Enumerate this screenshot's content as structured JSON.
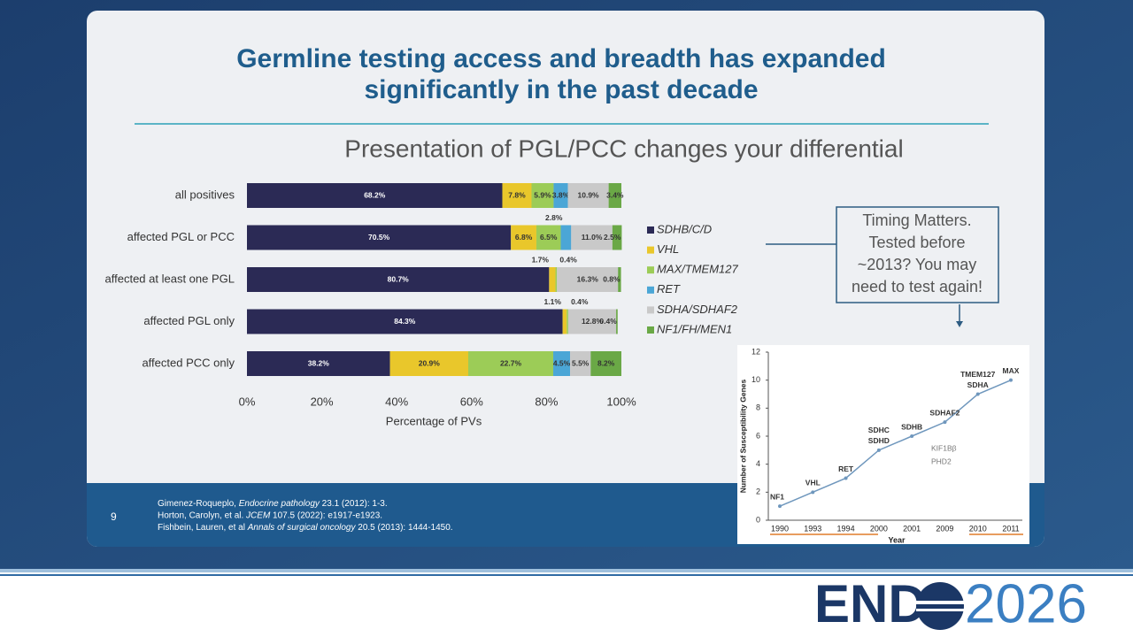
{
  "slide": {
    "title": [
      "Germline testing access and breadth has expanded",
      "significantly in the past decade"
    ],
    "page_number": "9",
    "references": [
      [
        "Gimenez-Roqueplo, ",
        "Endocrine pathology",
        " 23.1 (2012): 1-3."
      ],
      [
        "Horton, Carolyn, et al. ",
        "JCEM",
        " 107.5 (2022): e1917-e1923."
      ],
      [
        "Fishbein, Lauren, et al ",
        "Annals of surgical oncology",
        " 20.5 (2013): 1444-1450."
      ]
    ],
    "callout": [
      "Timing Matters.",
      "Tested before",
      "~2013? You may",
      "need to test again!"
    ],
    "logo": {
      "left": "END",
      "right": "2026"
    }
  },
  "chart_data": [
    {
      "type": "stacked_bar",
      "orientation": "horizontal",
      "title": "Presentation of PGL/PCC changes your differential",
      "categories": [
        "all positives",
        "affected PGL or PCC",
        "affected at least one PGL",
        "affected PGL only",
        "affected PCC only"
      ],
      "series": [
        {
          "name": "SDHB/C/D",
          "color": "#2b2a55",
          "values": [
            68.2,
            70.5,
            80.7,
            84.3,
            38.2
          ],
          "value_labels": [
            "68.2%",
            "70.5%",
            "80.7%",
            "84.3%",
            "38.2%"
          ]
        },
        {
          "name": "VHL",
          "color": "#e9c72b",
          "values": [
            7.8,
            6.8,
            1.7,
            1.1,
            20.9
          ],
          "value_labels": [
            "7.8%",
            "6.8%",
            "1.7%",
            "1.1%",
            "20.9%"
          ]
        },
        {
          "name": "MAX/TMEM127",
          "color": "#9ccc57",
          "values": [
            5.9,
            6.5,
            0.4,
            0.4,
            22.7
          ],
          "value_labels": [
            "5.9%",
            "6.5%",
            "0.4%",
            "0.4%",
            "22.7%"
          ]
        },
        {
          "name": "RET",
          "color": "#4ba6d6",
          "values": [
            3.8,
            2.8,
            null,
            null,
            4.5
          ],
          "value_labels": [
            "3.8%",
            "2.8%",
            null,
            null,
            "4.5%"
          ]
        },
        {
          "name": "SDHA/SDHAF2",
          "color": "#c9c9c9",
          "values": [
            10.9,
            11.0,
            16.3,
            12.8,
            5.5
          ],
          "value_labels": [
            "10.9%",
            "11.0%",
            "16.3%",
            "12.8%",
            "5.5%"
          ]
        },
        {
          "name": "NF1/FH/MEN1",
          "color": "#6aa846",
          "values": [
            3.4,
            2.5,
            0.8,
            0.4,
            8.2
          ],
          "value_labels": [
            "3.4%",
            "2.5%",
            "0.8%",
            "0.4%",
            "8.2%"
          ]
        }
      ],
      "xlim": [
        0,
        100
      ],
      "xticks": [
        {
          "value": 0,
          "label": "0%"
        },
        {
          "value": 20,
          "label": "20%"
        },
        {
          "value": 40,
          "label": "40%"
        },
        {
          "value": 60,
          "label": "60%"
        },
        {
          "value": 80,
          "label": "80%"
        },
        {
          "value": 100,
          "label": "100%"
        }
      ],
      "xlabel": "Percentage of PVs",
      "legend": "right"
    },
    {
      "type": "line",
      "categories": [
        "1990",
        "1993",
        "1994",
        "2000",
        "2001",
        "2009",
        "2010",
        "2011"
      ],
      "values": [
        1,
        2,
        3,
        5,
        6,
        7,
        9,
        10
      ],
      "point_labels": [
        [
          "NF1"
        ],
        [
          "VHL"
        ],
        [
          "RET"
        ],
        [
          "SDHC",
          "SDHD"
        ],
        [
          "SDHB"
        ],
        [
          "SDHAF2"
        ],
        [
          "TMEM127",
          "SDHA"
        ],
        [
          "MAX"
        ]
      ],
      "notes": [
        "KIF1Bβ",
        "PHD2"
      ],
      "ylim": [
        0,
        12
      ],
      "yticks": [
        0,
        2,
        4,
        6,
        8,
        10,
        12
      ],
      "xlabel": "Year",
      "ylabel": "Number of Susceptibility Genes",
      "color": "#6f97bd"
    }
  ]
}
